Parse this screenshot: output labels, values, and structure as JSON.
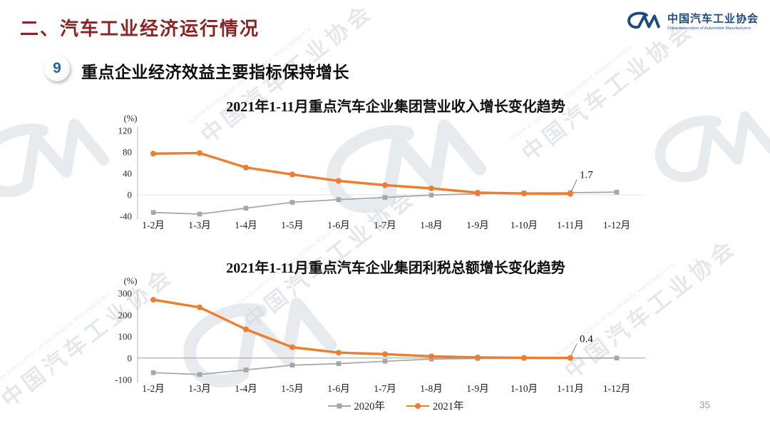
{
  "slide": {
    "section_title": "二、汽车工业经济运行情况",
    "badge_number": "9",
    "heading": "重点企业经济效益主要指标保持增长",
    "page_number": "35"
  },
  "logo": {
    "name_cn": "中国汽车工业协会",
    "name_en": "China Association of Automobile Manufacturers"
  },
  "watermark": {
    "text_cn": "中国汽车工业协会",
    "text_en": "China Association of Automobile Manufacturers"
  },
  "legend": {
    "items": [
      {
        "label": "2020年",
        "color": "#A6A6A6",
        "marker": "square"
      },
      {
        "label": "2021年",
        "color": "#ED7D31",
        "marker": "circle"
      }
    ]
  },
  "chart_data": [
    {
      "type": "line",
      "title": "2021年1-11月重点汽车企业集团营业收入增长变化趋势",
      "xlabel": "",
      "ylabel": "(%)",
      "ylim": [
        -40,
        120
      ],
      "yticks": [
        120,
        80,
        40,
        0,
        -40
      ],
      "grid": "zero-line-only",
      "legend_position": "shared-bottom",
      "categories": [
        "1-2月",
        "1-3月",
        "1-4月",
        "1-5月",
        "1-6月",
        "1-7月",
        "1-8月",
        "1-9月",
        "1-10月",
        "1-11月",
        "1-12月"
      ],
      "series": [
        {
          "name": "2020年",
          "color": "#A6A6A6",
          "marker": "square",
          "values": [
            -33,
            -36,
            -25,
            -14,
            -9,
            -5,
            -0.5,
            2,
            3.5,
            4,
            5
          ]
        },
        {
          "name": "2021年",
          "color": "#ED7D31",
          "marker": "circle",
          "values": [
            77,
            78,
            51,
            38,
            26,
            18,
            12,
            4,
            2.5,
            1.7
          ]
        }
      ],
      "annotation": {
        "text": "1.7",
        "series": "2021年",
        "category": "1-11月"
      }
    },
    {
      "type": "line",
      "title": "2021年1-11月重点汽车企业集团利税总额增长变化趋势",
      "xlabel": "",
      "ylabel": "(%)",
      "ylim": [
        -100,
        300
      ],
      "yticks": [
        300,
        200,
        100,
        0,
        -100
      ],
      "grid": "zero-line-only",
      "legend_position": "shared-bottom",
      "categories": [
        "1-2月",
        "1-3月",
        "1-4月",
        "1-5月",
        "1-6月",
        "1-7月",
        "1-8月",
        "1-9月",
        "1-10月",
        "1-11月",
        "1-12月"
      ],
      "series": [
        {
          "name": "2020年",
          "color": "#A6A6A6",
          "marker": "square",
          "values": [
            -68,
            -76,
            -55,
            -33,
            -26,
            -15,
            -5,
            -2,
            -1,
            0,
            0
          ]
        },
        {
          "name": "2021年",
          "color": "#ED7D31",
          "marker": "circle",
          "values": [
            270,
            235,
            133,
            50,
            25,
            18,
            8,
            3,
            1,
            0.4
          ]
        }
      ],
      "annotation": {
        "text": "0.4",
        "series": "2021年",
        "category": "1-11月"
      }
    }
  ]
}
